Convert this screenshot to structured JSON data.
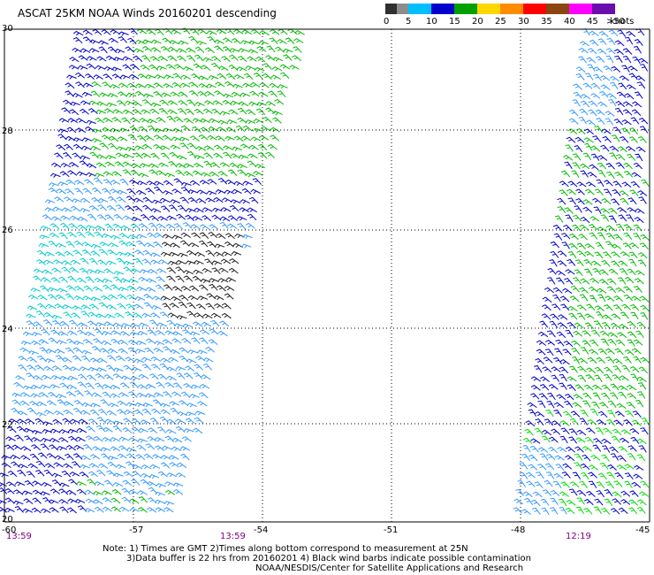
{
  "title": "ASCAT 25KM NOAA Winds 20160201 descending",
  "legend": {
    "labels": [
      "0",
      "5",
      "10",
      "15",
      "20",
      "25",
      "30",
      "35",
      "40",
      "45",
      ">50"
    ],
    "units": "knots",
    "colors": [
      "#303030",
      "#8c8c8c",
      "#1e90ff",
      "#0000cd",
      "#00a000",
      "#00e000",
      "#ffd700",
      "#ff8c00",
      "#ff0000",
      "#8b0000",
      "#8b4513",
      "#ff00ff",
      "#6a0dad"
    ]
  },
  "axes": {
    "lat_labels": [
      "30",
      "28",
      "26",
      "24",
      "22",
      "20"
    ],
    "lon_labels": [
      "-60",
      "-57",
      "-54",
      "-51",
      "-48",
      "-45"
    ]
  },
  "pass_times": [
    "13:59",
    "13:59",
    "12:19"
  ],
  "notes": [
    "Note: 1) Times are GMT 2)Times along bottom correspond to measurement at 25N",
    "3)Data buffer is 22 hrs from 20160201 4) Black wind barbs indicate possible contamination",
    "NOAA/NESDIS/Center for Satellite Applications and Research"
  ],
  "map_data": {
    "grid": true,
    "lat_range": [
      20,
      30
    ],
    "lon_range": [
      -60,
      -45
    ],
    "swaths": [
      {
        "name": "left swath",
        "color_mix": [
          "#00cccc",
          "#3399ff",
          "#0000cc",
          "#00bb00"
        ]
      },
      {
        "name": "right swath",
        "color_mix": [
          "#0000cc",
          "#3399ff",
          "#00bb00",
          "#00dd00"
        ]
      }
    ]
  }
}
